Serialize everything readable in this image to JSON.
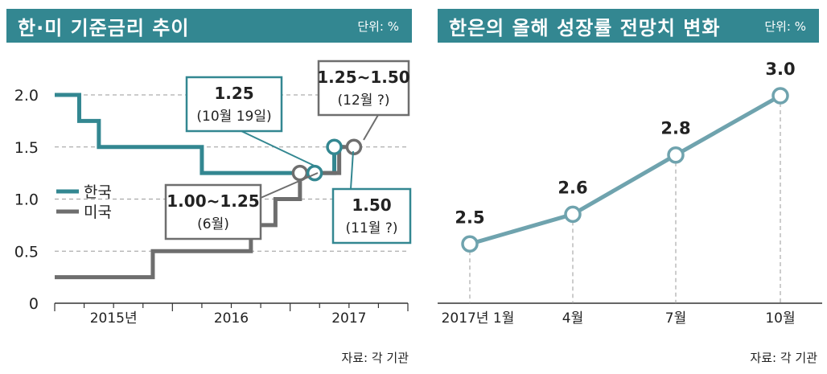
{
  "left_chart": {
    "header": {
      "title": "한·미 기준금리 추이",
      "unit": "단위: %"
    },
    "source": "자료: 각 기관",
    "colors": {
      "korea": "#338791",
      "us": "#6e6e6e"
    },
    "chart_data": {
      "type": "line",
      "title": "한·미 기준금리 추이",
      "unit": "단위: %",
      "ylim": [
        0,
        2.0
      ],
      "yticks": [
        "0",
        "0.5",
        "1.0",
        "1.5",
        "2.0"
      ],
      "xticks": [
        "2015년",
        "2016",
        "2017"
      ],
      "series": [
        {
          "name": "한국",
          "x": [
            0,
            2.5,
            2.5,
            4.5,
            4.5,
            15,
            15,
            25,
            25,
            28.5,
            28.5,
            29.5
          ],
          "values": [
            2.0,
            2.0,
            1.75,
            1.75,
            1.5,
            1.5,
            1.25,
            1.25,
            1.25,
            1.25,
            1.5,
            1.5
          ]
        },
        {
          "name": "미국",
          "x": [
            0,
            10,
            10,
            20,
            20,
            22.5,
            22.5,
            25,
            25,
            26.5,
            26.5,
            29,
            29,
            30.5
          ],
          "values": [
            0.25,
            0.25,
            0.5,
            0.5,
            0.75,
            0.75,
            1.0,
            1.0,
            1.25,
            1.25,
            1.25,
            1.25,
            1.5,
            1.5
          ]
        }
      ],
      "annotations": [
        {
          "value": "1.25",
          "note": "(10월 19일)"
        },
        {
          "value": "1.25~1.50",
          "note": "(12월 ?)"
        },
        {
          "value": "1.00~1.25",
          "note": "(6월)"
        },
        {
          "value": "1.50",
          "note": "(11월 ?)"
        }
      ]
    }
  },
  "right_chart": {
    "header": {
      "title": "한은의 올해 성장률 전망치 변화",
      "unit": "단위: %"
    },
    "source": "자료: 각 기관",
    "colors": {
      "line": "#6fa3ae"
    },
    "chart_data": {
      "type": "line",
      "title": "한은의 올해 성장률 전망치 변화",
      "unit": "단위: %",
      "categories": [
        "2017년 1월",
        "4월",
        "7월",
        "10월"
      ],
      "values": [
        2.5,
        2.6,
        2.8,
        3.0
      ],
      "labels": [
        "2.5",
        "2.6",
        "2.8",
        "3.0"
      ],
      "ylim": [
        2.3,
        3.0
      ]
    }
  }
}
